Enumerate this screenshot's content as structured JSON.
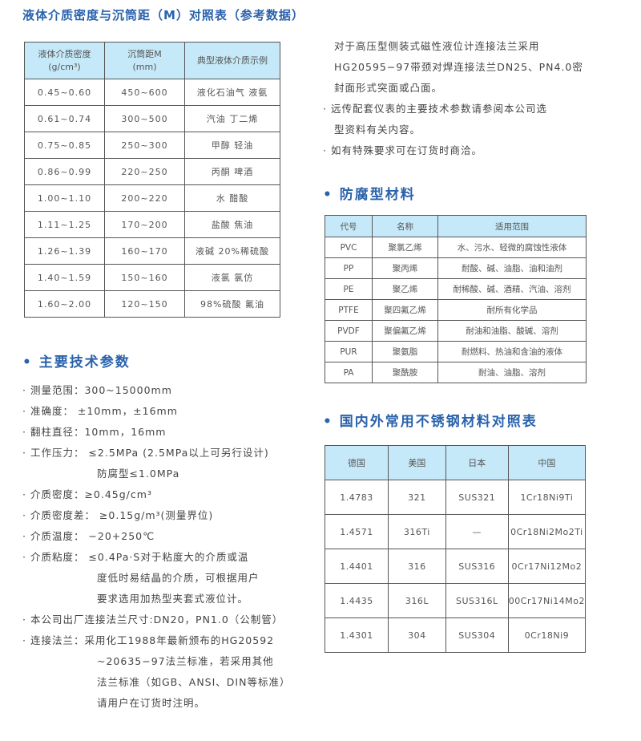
{
  "density_table": {
    "title": "液体介质密度与沉筒距（M）对照表（参考数据）",
    "headers": [
      "液体介质密度",
      "(g/cm³)",
      "沉筒距M",
      "(mm)",
      "典型液体介质示例"
    ],
    "rows": [
      [
        "0.45~0.60",
        "450~600",
        "液化石油气 液氨"
      ],
      [
        "0.61~0.74",
        "300~500",
        "汽油 丁二烯"
      ],
      [
        "0.75~0.85",
        "250~300",
        "甲醇 轻油"
      ],
      [
        "0.86~0.99",
        "220~250",
        "丙酮 啤酒"
      ],
      [
        "1.00~1.10",
        "200~220",
        "水  醋酸"
      ],
      [
        "1.11~1.25",
        "170~200",
        "盐酸 焦油"
      ],
      [
        "1.26~1.39",
        "160~170",
        "液碱 20%稀硫酸"
      ],
      [
        "1.40~1.59",
        "150~160",
        "液氯  氯仿"
      ],
      [
        "1.60~2.00",
        "120~150",
        "98%硫酸 氟油"
      ]
    ]
  },
  "specs": {
    "title": "• 主要技术参数",
    "lines": [
      "· 测量范围：300~15000mm",
      "· 准确度： ±10mm，±16mm",
      "· 翻柱直径：10mm，16mm",
      "· 工作压力： ≤2.5MPa (2.5MPa以上可另行设计)",
      "防腐型≤1.0MPa",
      "· 介质密度：≥0.45g/cm³",
      "· 介质密度差： ≥0.15g/m³(测量界位)",
      "· 介质温度： −20+250℃",
      "· 介质粘度： ≤0.4Pa·S对于粘度大的介质或温",
      "度低时易结晶的介质，可根据用户",
      "要求选用加热型夹套式液位计。",
      "· 本公司出厂连接法兰尺寸:DN20，PN1.0（公制管）",
      "· 连接法兰：采用化工1988年最新颁布的HG20592",
      "~20635−97法兰标准，若采用其他",
      "法兰标准（如GB、ANSI、DIN等标准）",
      "请用户在订货时注明。"
    ]
  },
  "right_text": [
    "对于高压型侧装式磁性液位计连接法兰采用",
    "HG20595−97带颈对焊连接法兰DN25、PN4.0密",
    "封面形式突面或凸面。",
    "· 远传配套仪表的主要技术参数请参阅本公司选",
    "型资料有关内容。",
    "· 如有特殊要求可在订货时商洽。"
  ],
  "materials_table": {
    "title": "• 防腐型材料",
    "headers": [
      "代号",
      "名称",
      "适用范围"
    ],
    "rows": [
      [
        "PVC",
        "聚氯乙烯",
        "水、污水、轻微的腐蚀性液体"
      ],
      [
        "PP",
        "聚丙烯",
        "耐酸、碱、油脂、油和油剂"
      ],
      [
        "PE",
        "聚乙烯",
        "耐稀酸、碱、酒精、汽油、溶剂"
      ],
      [
        "PTFE",
        "聚四氟乙烯",
        "耐所有化学品"
      ],
      [
        "PVDF",
        "聚偏氟乙烯",
        "耐油和油脂、酸碱、溶剂"
      ],
      [
        "PUR",
        "聚氨脂",
        "耐燃料、热油和含油的液体"
      ],
      [
        "PA",
        "聚酰胺",
        "耐油、油脂、溶剂"
      ]
    ]
  },
  "steel_table": {
    "title": "• 国内外常用不锈钢材料对照表",
    "headers": [
      "德国",
      "美国",
      "日本",
      "中国"
    ],
    "rows": [
      [
        "1.4783",
        "321",
        "SUS321",
        "1Cr18Ni9Ti"
      ],
      [
        "1.4571",
        "316Ti",
        "—",
        "0Cr18Ni2Mo2Ti"
      ],
      [
        "1.4401",
        "316",
        "SUS316",
        "0Cr17Ni12Mo2"
      ],
      [
        "1.4435",
        "316L",
        "SUS316L",
        "00Cr17Ni14Mo2"
      ],
      [
        "1.4301",
        "304",
        "SUS304",
        "0Cr18Ni9"
      ]
    ]
  },
  "colors": {
    "heading": "#2a62ac",
    "table_header_bg": "#c6e9f9"
  }
}
